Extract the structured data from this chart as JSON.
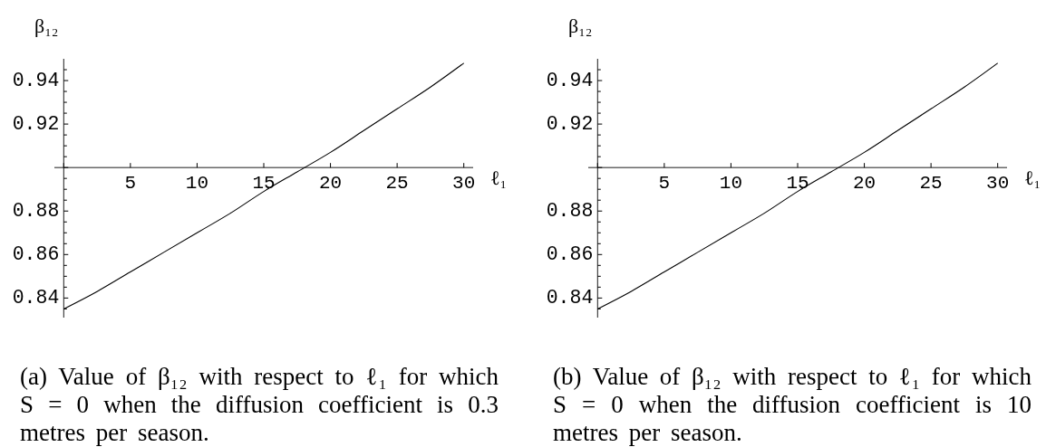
{
  "chart_data": [
    {
      "type": "line",
      "ylabel": "β₁₂",
      "xlabel": "ℓ₁",
      "annotations": [
        "(a) Value of β₁₂ with respect to ℓ₁ for which S = 0 when the diffusion coefficient is 0.3 metres per season."
      ],
      "x": [
        0,
        2.5,
        5,
        7.5,
        10,
        12.5,
        15,
        17.5,
        20,
        22.5,
        25,
        27.5,
        30
      ],
      "values": [
        0.835,
        0.843,
        0.852,
        0.861,
        0.87,
        0.879,
        0.889,
        0.898,
        0.907,
        0.917,
        0.927,
        0.937,
        0.948
      ],
      "color": "#000000",
      "xlim": [
        -0.7,
        30.7
      ],
      "xticks": [
        {
          "value": 0,
          "label": null
        },
        5,
        10,
        15,
        20,
        25,
        30
      ],
      "ylim": [
        0.831,
        0.95
      ],
      "yticks": [
        {
          "value": 0.835,
          "label": null
        },
        0.84,
        {
          "value": 0.845,
          "label": null
        },
        {
          "value": 0.85,
          "label": null
        },
        {
          "value": 0.855,
          "label": null
        },
        0.86,
        {
          "value": 0.865,
          "label": null
        },
        {
          "value": 0.87,
          "label": null
        },
        {
          "value": 0.875,
          "label": null
        },
        0.88,
        {
          "value": 0.885,
          "label": null
        },
        {
          "value": 0.89,
          "label": null
        },
        {
          "value": 0.895,
          "label": null
        },
        {
          "value": 0.9,
          "label": null
        },
        {
          "value": 0.905,
          "label": null
        },
        {
          "value": 0.91,
          "label": null
        },
        {
          "value": 0.915,
          "label": null
        },
        0.92,
        {
          "value": 0.925,
          "label": null
        },
        {
          "value": 0.93,
          "label": null
        },
        {
          "value": 0.935,
          "label": null
        },
        0.94,
        {
          "value": 0.945,
          "label": null
        }
      ]
    },
    {
      "type": "line",
      "ylabel": "β₁₂",
      "xlabel": "ℓ₁",
      "annotations": [
        "(b) Value of β₁₂ with respect to ℓ₁ for which S = 0 when the diffusion coefficient is 10 metres per season."
      ],
      "x": [
        0,
        2.5,
        5,
        7.5,
        10,
        12.5,
        15,
        17.5,
        20,
        22.5,
        25,
        27.5,
        30
      ],
      "values": [
        0.835,
        0.843,
        0.852,
        0.861,
        0.87,
        0.879,
        0.889,
        0.898,
        0.907,
        0.917,
        0.927,
        0.937,
        0.948
      ],
      "color": "#000000",
      "xlim": [
        -0.7,
        30.7
      ],
      "xticks": [
        {
          "value": 0,
          "label": null
        },
        5,
        10,
        15,
        20,
        25,
        30
      ],
      "ylim": [
        0.831,
        0.95
      ],
      "yticks": [
        {
          "value": 0.835,
          "label": null
        },
        0.84,
        {
          "value": 0.845,
          "label": null
        },
        {
          "value": 0.85,
          "label": null
        },
        {
          "value": 0.855,
          "label": null
        },
        0.86,
        {
          "value": 0.865,
          "label": null
        },
        {
          "value": 0.87,
          "label": null
        },
        {
          "value": 0.875,
          "label": null
        },
        0.88,
        {
          "value": 0.885,
          "label": null
        },
        {
          "value": 0.89,
          "label": null
        },
        {
          "value": 0.895,
          "label": null
        },
        {
          "value": 0.9,
          "label": null
        },
        {
          "value": 0.905,
          "label": null
        },
        {
          "value": 0.91,
          "label": null
        },
        {
          "value": 0.915,
          "label": null
        },
        0.92,
        {
          "value": 0.925,
          "label": null
        },
        {
          "value": 0.93,
          "label": null
        },
        {
          "value": 0.935,
          "label": null
        },
        0.94,
        {
          "value": 0.945,
          "label": null
        }
      ]
    }
  ]
}
